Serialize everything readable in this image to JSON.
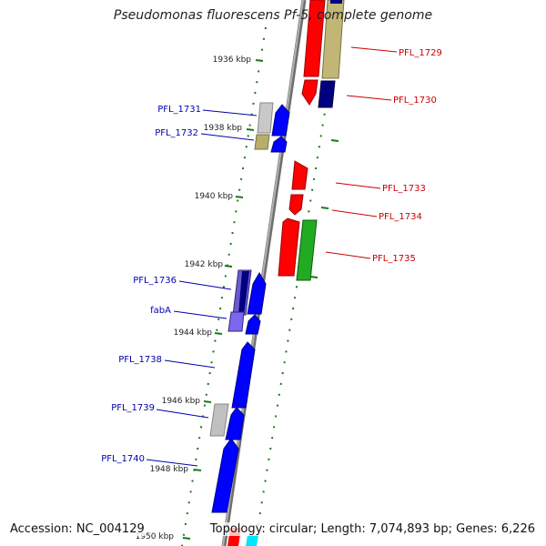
{
  "title": "Pseudomonas fluorescens Pf-5, complete genome",
  "footer": {
    "accession": "Accession: NC_004129",
    "summary": "Topology: circular; Length: 7,074,893 bp; Genes: 6,226"
  },
  "colors": {
    "backbone": "#8a8a8a",
    "forward_label": "#0000b0",
    "reverse_label": "#cc0000",
    "tick": "#1a7a1a",
    "red": "#ff0000",
    "blue": "#0000ff",
    "navy": "#000080",
    "khaki": "#b8ad6a",
    "gray": "#bbbbbb",
    "slate": "#6a5acd",
    "green": "#22aa22",
    "cyan": "#00e5ff"
  },
  "kbp_labels": [
    "1936 kbp",
    "1938 kbp",
    "1940 kbp",
    "1942 kbp",
    "1944 kbp",
    "1946 kbp",
    "1948 kbp",
    "1950 kbp"
  ],
  "left_genes": [
    "PFL_1731",
    "PFL_1732",
    "PFL_1736",
    "fabA",
    "PFL_1738",
    "PFL_1739",
    "PFL_1740"
  ],
  "right_genes": [
    "PFL_1729",
    "PFL_1730",
    "PFL_1733",
    "PFL_1734",
    "PFL_1735"
  ]
}
